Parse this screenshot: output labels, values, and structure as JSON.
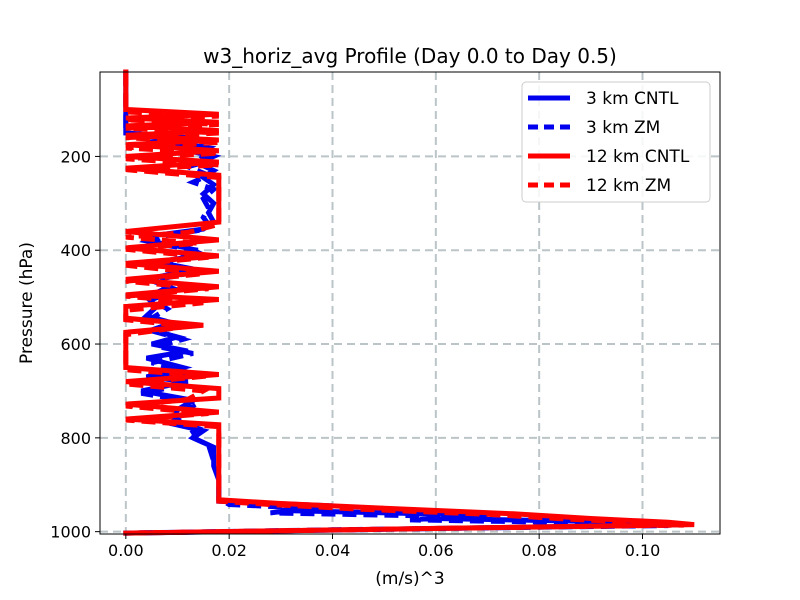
{
  "chart_data": {
    "type": "line",
    "title": "w3_horiz_avg Profile (Day 0.0 to Day 0.5)",
    "xlabel": "(m/s)^3",
    "ylabel": "Pressure (hPa)",
    "xlim": [
      -0.005,
      0.115
    ],
    "ylim": [
      1005,
      20
    ],
    "y_inverted": true,
    "grid": true,
    "legend_position": "top-right",
    "xticks": [
      0.0,
      0.02,
      0.04,
      0.06,
      0.08,
      0.1
    ],
    "xtick_labels": [
      "0.00",
      "0.02",
      "0.04",
      "0.06",
      "0.08",
      "0.10"
    ],
    "yticks": [
      200,
      400,
      600,
      800,
      1000
    ],
    "ytick_labels": [
      "200",
      "400",
      "600",
      "800",
      "1000"
    ],
    "series": [
      {
        "name": "3 km CNTL",
        "color": "#0000ee",
        "style": "solid",
        "points": [
          [
            0.0,
            20
          ],
          [
            0.0,
            100
          ],
          [
            0.0,
            150
          ],
          [
            0.012,
            160
          ],
          [
            0.004,
            170
          ],
          [
            0.016,
            180
          ],
          [
            0.013,
            190
          ],
          [
            0.017,
            200
          ],
          [
            0.014,
            215
          ],
          [
            0.017,
            230
          ],
          [
            0.015,
            245
          ],
          [
            0.017,
            260
          ],
          [
            0.015,
            280
          ],
          [
            0.017,
            300
          ],
          [
            0.016,
            320
          ],
          [
            0.017,
            340
          ],
          [
            0.015,
            355
          ],
          [
            0.006,
            368
          ],
          [
            0.004,
            380
          ],
          [
            0.012,
            395
          ],
          [
            0.015,
            410
          ],
          [
            0.006,
            425
          ],
          [
            0.013,
            440
          ],
          [
            0.005,
            460
          ],
          [
            0.008,
            480
          ],
          [
            0.004,
            500
          ],
          [
            0.006,
            520
          ],
          [
            0.004,
            540
          ],
          [
            0.009,
            555
          ],
          [
            0.005,
            570
          ],
          [
            0.01,
            585
          ],
          [
            0.005,
            600
          ],
          [
            0.012,
            615
          ],
          [
            0.004,
            630
          ],
          [
            0.011,
            650
          ],
          [
            0.004,
            670
          ],
          [
            0.012,
            680
          ],
          [
            0.003,
            700
          ],
          [
            0.013,
            720
          ],
          [
            0.01,
            740
          ],
          [
            0.009,
            770
          ],
          [
            0.015,
            785
          ],
          [
            0.013,
            800
          ],
          [
            0.017,
            820
          ],
          [
            0.017,
            860
          ],
          [
            0.018,
            890
          ],
          [
            0.018,
            920
          ],
          [
            0.018,
            935
          ],
          [
            0.04,
            945
          ],
          [
            0.03,
            955
          ],
          [
            0.07,
            965
          ],
          [
            0.06,
            972
          ],
          [
            0.1,
            980
          ],
          [
            0.108,
            985
          ],
          [
            0.05,
            995
          ],
          [
            0.0,
            1003
          ]
        ]
      },
      {
        "name": "3 km ZM",
        "color": "#0000ee",
        "style": "dashed",
        "points": [
          [
            0.0,
            20
          ],
          [
            0.0,
            100
          ],
          [
            0.0,
            150
          ],
          [
            0.013,
            162
          ],
          [
            0.006,
            172
          ],
          [
            0.016,
            182
          ],
          [
            0.014,
            195
          ],
          [
            0.016,
            210
          ],
          [
            0.012,
            222
          ],
          [
            0.016,
            240
          ],
          [
            0.013,
            255
          ],
          [
            0.017,
            270
          ],
          [
            0.015,
            290
          ],
          [
            0.016,
            310
          ],
          [
            0.015,
            330
          ],
          [
            0.016,
            345
          ],
          [
            0.014,
            358
          ],
          [
            0.007,
            370
          ],
          [
            0.005,
            385
          ],
          [
            0.014,
            400
          ],
          [
            0.011,
            415
          ],
          [
            0.008,
            430
          ],
          [
            0.014,
            445
          ],
          [
            0.005,
            465
          ],
          [
            0.01,
            485
          ],
          [
            0.005,
            505
          ],
          [
            0.008,
            525
          ],
          [
            0.005,
            545
          ],
          [
            0.011,
            560
          ],
          [
            0.006,
            575
          ],
          [
            0.011,
            590
          ],
          [
            0.006,
            605
          ],
          [
            0.013,
            620
          ],
          [
            0.005,
            640
          ],
          [
            0.012,
            660
          ],
          [
            0.005,
            675
          ],
          [
            0.01,
            690
          ],
          [
            0.003,
            705
          ],
          [
            0.014,
            725
          ],
          [
            0.011,
            745
          ],
          [
            0.01,
            765
          ],
          [
            0.014,
            780
          ],
          [
            0.012,
            795
          ],
          [
            0.016,
            815
          ],
          [
            0.017,
            850
          ],
          [
            0.018,
            880
          ],
          [
            0.018,
            910
          ],
          [
            0.018,
            930
          ],
          [
            0.02,
            942
          ],
          [
            0.035,
            950
          ],
          [
            0.028,
            960
          ],
          [
            0.065,
            968
          ],
          [
            0.055,
            975
          ],
          [
            0.095,
            982
          ],
          [
            0.105,
            987
          ],
          [
            0.04,
            996
          ],
          [
            0.0,
            1003
          ]
        ]
      },
      {
        "name": "12 km CNTL",
        "color": "#ff0000",
        "style": "solid",
        "points": [
          [
            0.0,
            20
          ],
          [
            0.0,
            100
          ],
          [
            0.018,
            110
          ],
          [
            0.0,
            118
          ],
          [
            0.018,
            127
          ],
          [
            0.0,
            135
          ],
          [
            0.018,
            145
          ],
          [
            0.0,
            155
          ],
          [
            0.018,
            165
          ],
          [
            0.0,
            175
          ],
          [
            0.018,
            188
          ],
          [
            0.0,
            200
          ],
          [
            0.018,
            212
          ],
          [
            0.0,
            225
          ],
          [
            0.018,
            240
          ],
          [
            0.018,
            340
          ],
          [
            0.0,
            360
          ],
          [
            0.018,
            378
          ],
          [
            0.0,
            395
          ],
          [
            0.018,
            412
          ],
          [
            0.0,
            428
          ],
          [
            0.018,
            445
          ],
          [
            0.0,
            462
          ],
          [
            0.018,
            478
          ],
          [
            0.0,
            495
          ],
          [
            0.018,
            505
          ],
          [
            0.0,
            520
          ],
          [
            0.0,
            545
          ],
          [
            0.015,
            560
          ],
          [
            0.0,
            575
          ],
          [
            0.0,
            650
          ],
          [
            0.018,
            665
          ],
          [
            0.0,
            680
          ],
          [
            0.018,
            695
          ],
          [
            0.018,
            715
          ],
          [
            0.0,
            728
          ],
          [
            0.018,
            745
          ],
          [
            0.0,
            760
          ],
          [
            0.018,
            772
          ],
          [
            0.018,
            900
          ],
          [
            0.018,
            932
          ],
          [
            0.03,
            940
          ],
          [
            0.05,
            950
          ],
          [
            0.075,
            962
          ],
          [
            0.09,
            972
          ],
          [
            0.105,
            980
          ],
          [
            0.11,
            985
          ],
          [
            0.06,
            993
          ],
          [
            0.0,
            1003
          ]
        ]
      },
      {
        "name": "12 km ZM",
        "color": "#ff0000",
        "style": "dashed",
        "points": [
          [
            0.0,
            20
          ],
          [
            0.0,
            105
          ],
          [
            0.018,
            114
          ],
          [
            0.0,
            122
          ],
          [
            0.018,
            132
          ],
          [
            0.0,
            140
          ],
          [
            0.018,
            150
          ],
          [
            0.0,
            160
          ],
          [
            0.018,
            170
          ],
          [
            0.0,
            182
          ],
          [
            0.018,
            193
          ],
          [
            0.0,
            205
          ],
          [
            0.018,
            218
          ],
          [
            0.0,
            228
          ],
          [
            0.018,
            245
          ],
          [
            0.018,
            345
          ],
          [
            0.012,
            362
          ],
          [
            0.0,
            372
          ],
          [
            0.014,
            385
          ],
          [
            0.0,
            398
          ],
          [
            0.016,
            415
          ],
          [
            0.0,
            432
          ],
          [
            0.015,
            450
          ],
          [
            0.0,
            466
          ],
          [
            0.016,
            482
          ],
          [
            0.0,
            498
          ],
          [
            0.015,
            512
          ],
          [
            0.0,
            528
          ],
          [
            0.0,
            548
          ],
          [
            0.012,
            562
          ],
          [
            0.0,
            580
          ],
          [
            0.0,
            655
          ],
          [
            0.016,
            668
          ],
          [
            0.0,
            685
          ],
          [
            0.015,
            700
          ],
          [
            0.012,
            718
          ],
          [
            0.0,
            732
          ],
          [
            0.016,
            748
          ],
          [
            0.0,
            762
          ],
          [
            0.018,
            776
          ],
          [
            0.018,
            905
          ],
          [
            0.018,
            935
          ],
          [
            0.028,
            942
          ],
          [
            0.045,
            952
          ],
          [
            0.07,
            963
          ],
          [
            0.085,
            973
          ],
          [
            0.1,
            981
          ],
          [
            0.108,
            986
          ],
          [
            0.055,
            994
          ],
          [
            0.0,
            1003
          ]
        ]
      }
    ]
  }
}
